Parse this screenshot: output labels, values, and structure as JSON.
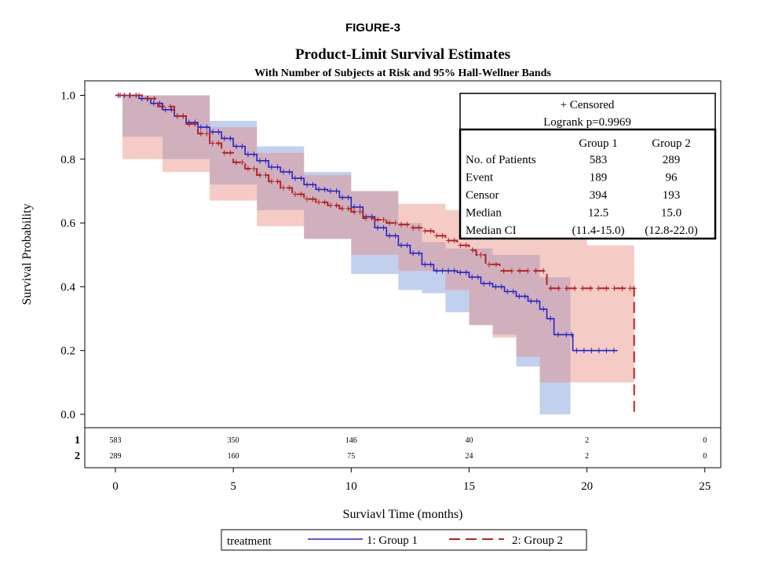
{
  "figure_label": "FIGURE-3",
  "chart_data": {
    "type": "line",
    "title": "Product-Limit Survival Estimates",
    "subtitle": "With Number of Subjects at Risk and 95% Hall-Wellner Bands",
    "xlabel": "Surviavl Time (months)",
    "ylabel": "Survival Probability",
    "xlim": [
      0,
      25
    ],
    "ylim": [
      0,
      1
    ],
    "x_ticks": [
      "0",
      "5",
      "10",
      "15",
      "20",
      "25"
    ],
    "y_ticks": [
      "0.0",
      "0.2",
      "0.4",
      "0.6",
      "0.8",
      "1.0"
    ],
    "series": [
      {
        "name": "1: Group 1",
        "color": "#2323c8",
        "style": "solid",
        "points": [
          [
            0,
            1.0
          ],
          [
            0.5,
            1.0
          ],
          [
            1,
            0.99
          ],
          [
            1.5,
            0.975
          ],
          [
            2,
            0.955
          ],
          [
            2.5,
            0.935
          ],
          [
            3,
            0.915
          ],
          [
            3.5,
            0.9
          ],
          [
            4,
            0.885
          ],
          [
            4.5,
            0.865
          ],
          [
            5,
            0.84
          ],
          [
            5.5,
            0.815
          ],
          [
            6,
            0.795
          ],
          [
            6.5,
            0.775
          ],
          [
            7,
            0.76
          ],
          [
            7.5,
            0.74
          ],
          [
            8,
            0.72
          ],
          [
            8.5,
            0.705
          ],
          [
            9,
            0.7
          ],
          [
            9.5,
            0.68
          ],
          [
            10,
            0.65
          ],
          [
            10.5,
            0.62
          ],
          [
            11,
            0.585
          ],
          [
            11.5,
            0.56
          ],
          [
            12,
            0.53
          ],
          [
            12.5,
            0.505
          ],
          [
            13,
            0.47
          ],
          [
            13.5,
            0.45
          ],
          [
            14,
            0.45
          ],
          [
            14.5,
            0.445
          ],
          [
            15,
            0.43
          ],
          [
            15.5,
            0.41
          ],
          [
            16,
            0.4
          ],
          [
            16.5,
            0.385
          ],
          [
            17,
            0.37
          ],
          [
            17.5,
            0.355
          ],
          [
            18,
            0.33
          ],
          [
            18.3,
            0.3
          ],
          [
            18.6,
            0.25
          ],
          [
            19.3,
            0.25
          ],
          [
            19.4,
            0.2
          ],
          [
            21.3,
            0.2
          ]
        ]
      },
      {
        "name": "2: Group 2",
        "color": "#b22222",
        "style": "dashed",
        "points": [
          [
            0,
            1.0
          ],
          [
            0.8,
            1.0
          ],
          [
            1.2,
            0.99
          ],
          [
            1.8,
            0.965
          ],
          [
            2.5,
            0.935
          ],
          [
            3,
            0.91
          ],
          [
            3.5,
            0.88
          ],
          [
            4,
            0.85
          ],
          [
            4.5,
            0.82
          ],
          [
            5,
            0.79
          ],
          [
            5.5,
            0.77
          ],
          [
            6,
            0.75
          ],
          [
            6.5,
            0.73
          ],
          [
            7,
            0.71
          ],
          [
            7.5,
            0.69
          ],
          [
            8,
            0.675
          ],
          [
            8.5,
            0.665
          ],
          [
            9,
            0.655
          ],
          [
            9.5,
            0.645
          ],
          [
            10,
            0.635
          ],
          [
            10.5,
            0.615
          ],
          [
            11,
            0.61
          ],
          [
            11.5,
            0.6
          ],
          [
            12,
            0.595
          ],
          [
            12.5,
            0.585
          ],
          [
            13,
            0.575
          ],
          [
            13.5,
            0.56
          ],
          [
            14,
            0.545
          ],
          [
            14.5,
            0.53
          ],
          [
            15,
            0.515
          ],
          [
            15.3,
            0.5
          ],
          [
            15.7,
            0.47
          ],
          [
            16.3,
            0.45
          ],
          [
            18.0,
            0.45
          ],
          [
            18.3,
            0.395
          ],
          [
            22.0,
            0.395
          ],
          [
            22.0,
            0.0
          ]
        ]
      }
    ],
    "bands": [
      {
        "series": "1: Group 1",
        "upper": [
          [
            0.3,
            1.0
          ],
          [
            2,
            1.0
          ],
          [
            4,
            0.92
          ],
          [
            6,
            0.84
          ],
          [
            8,
            0.76
          ],
          [
            10,
            0.7
          ],
          [
            12,
            0.6
          ],
          [
            13,
            0.54
          ],
          [
            14,
            0.52
          ],
          [
            16,
            0.5
          ],
          [
            18,
            0.43
          ],
          [
            18.5,
            0.43
          ],
          [
            19.3,
            0.43
          ]
        ],
        "lower": [
          [
            0.3,
            0.85
          ],
          [
            2,
            0.87
          ],
          [
            4,
            0.8
          ],
          [
            6,
            0.72
          ],
          [
            8,
            0.64
          ],
          [
            10,
            0.55
          ],
          [
            12,
            0.44
          ],
          [
            13,
            0.39
          ],
          [
            14,
            0.38
          ],
          [
            15,
            0.32
          ],
          [
            16,
            0.28
          ],
          [
            17,
            0.25
          ],
          [
            18,
            0.15
          ],
          [
            18.5,
            0.0
          ],
          [
            19.3,
            0.0
          ]
        ]
      },
      {
        "series": "2: Group 2",
        "upper": [
          [
            0.3,
            1.0
          ],
          [
            2,
            1.0
          ],
          [
            4,
            0.9
          ],
          [
            6,
            0.82
          ],
          [
            8,
            0.75
          ],
          [
            10,
            0.7
          ],
          [
            12,
            0.66
          ],
          [
            14,
            0.64
          ],
          [
            16,
            0.61
          ],
          [
            18,
            0.56
          ],
          [
            20,
            0.53
          ],
          [
            22,
            0.53
          ]
        ],
        "lower": [
          [
            0.3,
            0.8
          ],
          [
            2,
            0.8
          ],
          [
            4,
            0.76
          ],
          [
            6,
            0.67
          ],
          [
            8,
            0.59
          ],
          [
            10,
            0.55
          ],
          [
            12,
            0.5
          ],
          [
            14,
            0.45
          ],
          [
            15,
            0.39
          ],
          [
            16,
            0.28
          ],
          [
            17,
            0.24
          ],
          [
            18,
            0.18
          ],
          [
            19,
            0.1
          ],
          [
            22,
            0.1
          ]
        ]
      }
    ],
    "inset": {
      "censored_label": "+ Censored",
      "logrank": "Logrank p=0.9969",
      "col_headers": [
        "Group 1",
        "Group 2"
      ],
      "rows": [
        {
          "label": "No. of Patients",
          "g1": "583",
          "g2": "289"
        },
        {
          "label": "Event",
          "g1": "189",
          "g2": "96"
        },
        {
          "label": "Censor",
          "g1": "394",
          "g2": "193"
        },
        {
          "label": "Median",
          "g1": "12.5",
          "g2": "15.0"
        },
        {
          "label": "Median CI",
          "g1": "(11.4-15.0)",
          "g2": "(12.8-22.0)"
        }
      ]
    },
    "at_risk": {
      "rows": [
        {
          "label": "1",
          "times": [
            0,
            5,
            10,
            15,
            20,
            25
          ],
          "counts": [
            "583",
            "350",
            "146",
            "40",
            "2",
            "0"
          ]
        },
        {
          "label": "2",
          "times": [
            0,
            5,
            10,
            15,
            20,
            25
          ],
          "counts": [
            "289",
            "160",
            "75",
            "24",
            "2",
            "0"
          ]
        }
      ]
    },
    "legend": {
      "title": "treatment",
      "position": "bottom",
      "entries": [
        "1: Group 1",
        "2: Group 2"
      ]
    }
  }
}
